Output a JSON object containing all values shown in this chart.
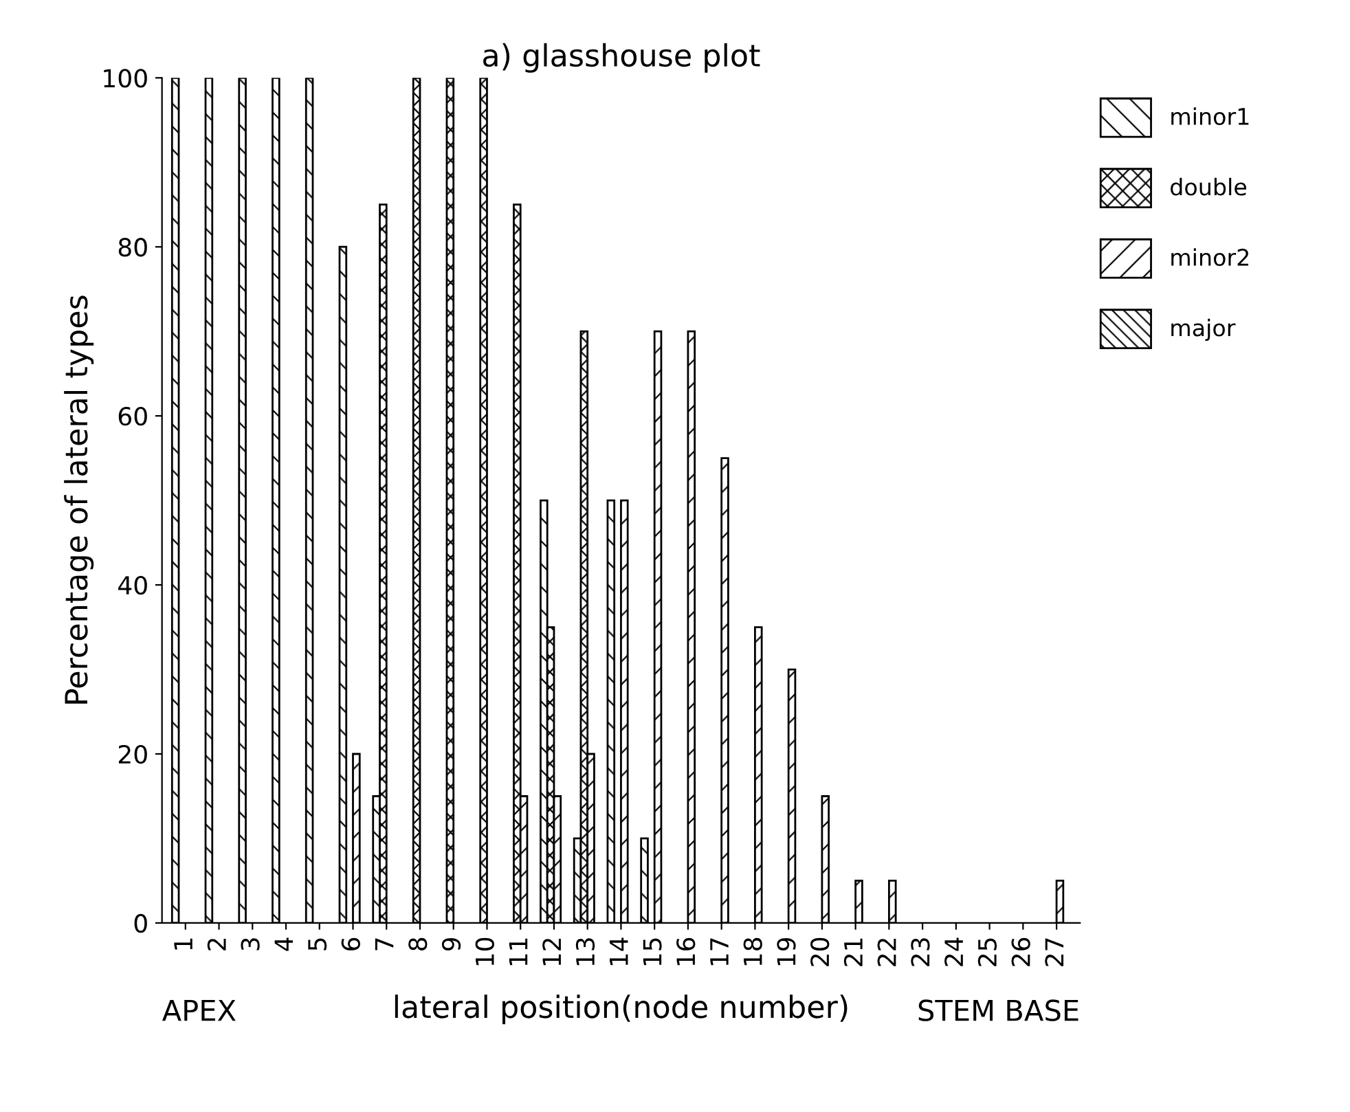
{
  "chart_data": {
    "type": "bar",
    "title": "a) glasshouse plot",
    "xlabel": "lateral position(node number)",
    "ylabel": "Percentage of lateral types",
    "categories": [
      "1",
      "2",
      "3",
      "4",
      "5",
      "6",
      "7",
      "8",
      "9",
      "10",
      "11",
      "12",
      "13",
      "14",
      "15",
      "16",
      "17",
      "18",
      "19",
      "20",
      "21",
      "22",
      "23",
      "24",
      "25",
      "26",
      "27"
    ],
    "series": [
      {
        "name": "minor1",
        "color": "#000000",
        "values": [
          100,
          100,
          100,
          100,
          100,
          80,
          15,
          null,
          null,
          null,
          null,
          50,
          10,
          50,
          10,
          null,
          null,
          null,
          null,
          null,
          null,
          null,
          null,
          null,
          null,
          null,
          null
        ]
      },
      {
        "name": "double",
        "color": "#000000",
        "values": [
          null,
          null,
          null,
          null,
          null,
          null,
          85,
          100,
          100,
          100,
          85,
          35,
          70,
          null,
          null,
          null,
          null,
          null,
          null,
          null,
          null,
          null,
          null,
          null,
          null,
          null,
          null
        ]
      },
      {
        "name": "minor2",
        "color": "#000000",
        "values": [
          null,
          null,
          null,
          null,
          null,
          20,
          null,
          null,
          null,
          null,
          15,
          15,
          20,
          50,
          70,
          70,
          55,
          35,
          30,
          15,
          5,
          5,
          null,
          null,
          null,
          null,
          5
        ]
      },
      {
        "name": "major",
        "color": "#000000",
        "values": [
          null,
          null,
          null,
          null,
          null,
          null,
          null,
          null,
          null,
          null,
          null,
          null,
          null,
          null,
          null,
          null,
          null,
          null,
          null,
          null,
          null,
          null,
          null,
          null,
          null,
          null,
          null
        ]
      }
    ],
    "ylim": [
      0,
      100
    ],
    "yticks": [
      0,
      20,
      40,
      60,
      80,
      100
    ],
    "grid": false,
    "legend": "top right",
    "annotations": [
      "APEX",
      "STEM BASE"
    ]
  }
}
